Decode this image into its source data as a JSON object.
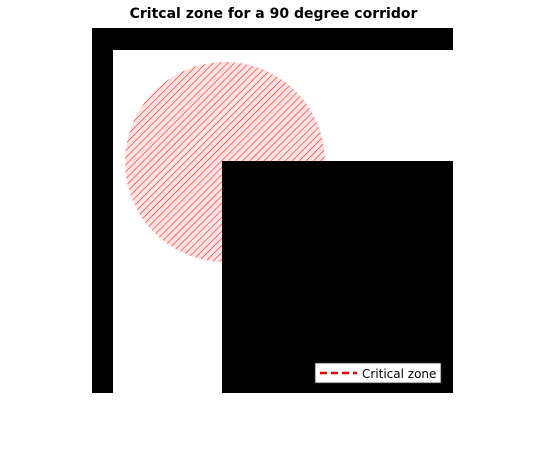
{
  "figure": {
    "title": "Critcal zone for a 90 degree corridor",
    "legend": {
      "entries": [
        {
          "label": "Critical zone",
          "style": "dashed",
          "color": "#e00000"
        }
      ],
      "placement": "bottom-right"
    },
    "colors": {
      "walls": "#000000",
      "zone_hatch": "#ff3333",
      "zone_fill": "#ffdede",
      "background": "#ffffff"
    },
    "elements": {
      "outer_walls": "black",
      "inner_corner_block": "black",
      "critical_zone": "circle hatched"
    }
  }
}
